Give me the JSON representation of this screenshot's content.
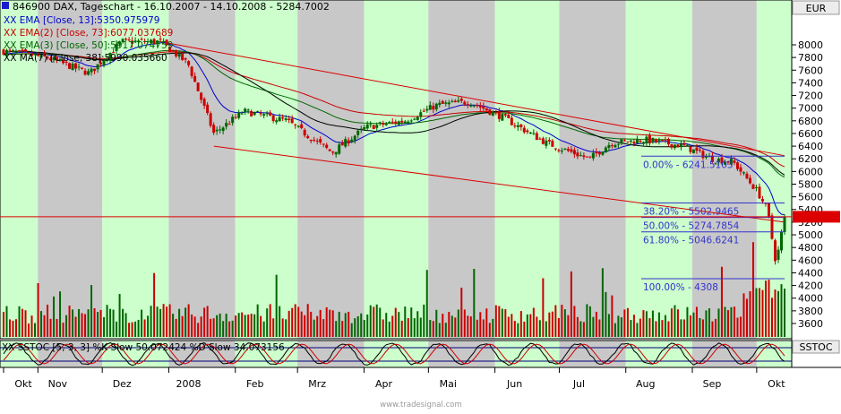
{
  "header": {
    "title": "846900  DAX, Tageschart - 16.10.2007 - 14.10.2008 - 5284.7002",
    "currency": "EUR"
  },
  "indicators": [
    {
      "label": "XX EMA [Close, 13]:5350.975979",
      "color": "#0000cc"
    },
    {
      "label": "XX EMA(2) [Close, 73]:6077.037689",
      "color": "#cc0000"
    },
    {
      "label": "XX EMA(3) [Close, 50]:5917.074759",
      "color": "#006600"
    },
    {
      "label": "XX MA(7) [Close, 38]:5990.035660",
      "color": "#000000"
    }
  ],
  "fib_levels": [
    {
      "label": "0.00% - 6241.5103",
      "value": 6241.5103
    },
    {
      "label": "38.20% - 5502.9465",
      "value": 5502.9465
    },
    {
      "label": "50.00% - 5274.7854",
      "value": 5274.7854
    },
    {
      "label": "61.80% - 5046.6241",
      "value": 5046.6241
    },
    {
      "label": "100.00% - 4308",
      "value": 4308
    }
  ],
  "last_price": 5284.7002,
  "stoch": {
    "legend": "XX SSTOC [5, 3, 3] %K Slow 50.072424 %D Slow 34.073156",
    "title": "SSTOC"
  },
  "watermark": "www.tradesignal.com",
  "colors": {
    "band_green": "#ccffcc",
    "band_gray": "#c8c8c8",
    "up_candle": "#006600",
    "down_candle": "#cc0000",
    "trend": "#dd0000",
    "fib": "#3333cc"
  },
  "chart_data": {
    "type": "candlestick",
    "y_axis": {
      "range": [
        3400,
        8400
      ],
      "ticks": [
        "3600",
        "3800",
        "4000",
        "4200",
        "4400",
        "4600",
        "4800",
        "5000",
        "5200",
        "5400",
        "5600",
        "5800",
        "6000",
        "6200",
        "6400",
        "6600",
        "6800",
        "7000",
        "7200",
        "7400",
        "7600",
        "7800",
        "8000"
      ]
    },
    "x_axis": {
      "ticks": [
        "Okt",
        "Nov",
        "Dez",
        "2008",
        "Feb",
        "Mrz",
        "Apr",
        "Mai",
        "Jun",
        "Jul",
        "Aug",
        "Sep",
        "Okt"
      ]
    },
    "price_anchors": [
      {
        "date": "2007-10-16",
        "close": 7900
      },
      {
        "date": "2007-11-05",
        "close": 7800
      },
      {
        "date": "2007-11-25",
        "close": 7550
      },
      {
        "date": "2007-12-10",
        "close": 8050
      },
      {
        "date": "2007-12-28",
        "close": 8050
      },
      {
        "date": "2008-01-10",
        "close": 7700
      },
      {
        "date": "2008-01-22",
        "close": 6600
      },
      {
        "date": "2008-02-05",
        "close": 6950
      },
      {
        "date": "2008-02-25",
        "close": 6800
      },
      {
        "date": "2008-03-17",
        "close": 6300
      },
      {
        "date": "2008-04-02",
        "close": 6700
      },
      {
        "date": "2008-04-20",
        "close": 6800
      },
      {
        "date": "2008-05-05",
        "close": 7050
      },
      {
        "date": "2008-05-20",
        "close": 7100
      },
      {
        "date": "2008-06-05",
        "close": 6850
      },
      {
        "date": "2008-06-25",
        "close": 6450
      },
      {
        "date": "2008-07-15",
        "close": 6200
      },
      {
        "date": "2008-07-25",
        "close": 6450
      },
      {
        "date": "2008-08-10",
        "close": 6500
      },
      {
        "date": "2008-08-28",
        "close": 6400
      },
      {
        "date": "2008-09-10",
        "close": 6200
      },
      {
        "date": "2008-09-20",
        "close": 6150
      },
      {
        "date": "2008-10-01",
        "close": 5700
      },
      {
        "date": "2008-10-06",
        "close": 5400
      },
      {
        "date": "2008-10-10",
        "close": 4550
      },
      {
        "date": "2008-10-14",
        "close": 5284.7
      }
    ]
  }
}
